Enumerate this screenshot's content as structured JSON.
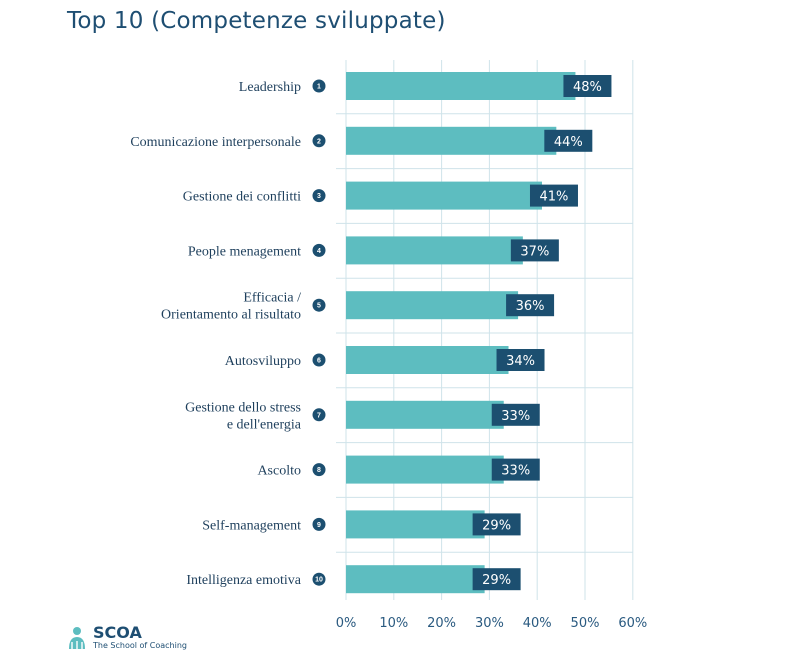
{
  "page": {
    "title": "Top 10 (Competenze sviluppate)"
  },
  "chart_data": {
    "type": "bar",
    "orientation": "horizontal",
    "title": "Top 10 (Competenze sviluppate)",
    "categories": [
      "Leadership",
      "Comunicazione interpersonale",
      "Gestione dei conflitti",
      "People menagement",
      "Efficacia / Orientamento al risultato",
      "Autosviluppo",
      "Gestione dello stress e dell'energia",
      "Ascolto",
      "Self-management",
      "Intelligenza emotiva"
    ],
    "category_lines": [
      [
        "Leadership"
      ],
      [
        "Comunicazione interpersonale"
      ],
      [
        "Gestione dei conflitti"
      ],
      [
        "People menagement"
      ],
      [
        "Efficacia /",
        "Orientamento al risultato"
      ],
      [
        "Autosviluppo"
      ],
      [
        "Gestione dello stress",
        "e dell'energia"
      ],
      [
        "Ascolto"
      ],
      [
        "Self-management"
      ],
      [
        "Intelligenza emotiva"
      ]
    ],
    "ranks": [
      "1",
      "2",
      "3",
      "4",
      "5",
      "6",
      "7",
      "8",
      "9",
      "10"
    ],
    "values": [
      48,
      44,
      41,
      37,
      36,
      34,
      33,
      33,
      29,
      29
    ],
    "value_labels": [
      "48%",
      "44%",
      "41%",
      "37%",
      "36%",
      "34%",
      "33%",
      "33%",
      "29%",
      "29%"
    ],
    "x_ticks": [
      "0%",
      "10%",
      "20%",
      "30%",
      "40%",
      "50%",
      "60%"
    ],
    "xlim": [
      0,
      60
    ],
    "grid": true,
    "colors": {
      "bar": "#5dbdc0",
      "label_box": "#1c4f70",
      "rank_circle": "#1c4f70",
      "grid": "#cfe3ea",
      "text": "#1e3f5c"
    }
  },
  "logo": {
    "name": "SCOA",
    "subtitle": "The School of Coaching",
    "icon": "coach-figure-icon"
  }
}
